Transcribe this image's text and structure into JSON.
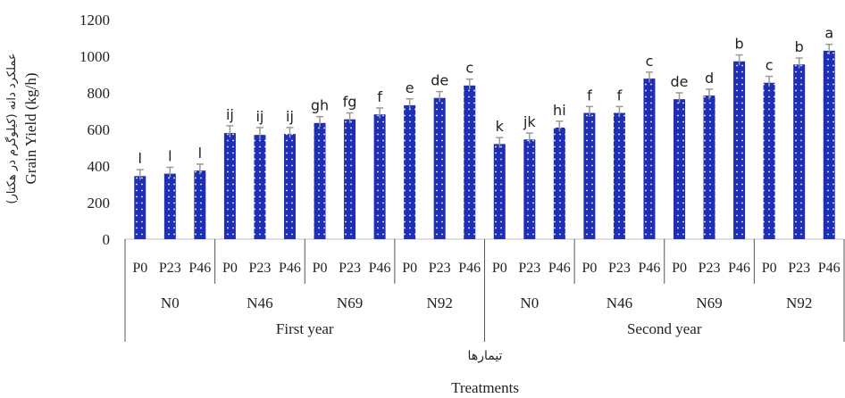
{
  "chart_data": {
    "type": "bar",
    "ylabel": "Grain Yield (kg/h)",
    "ylabel_fa": "عملکرد دانه (کیلوگرم در هکتار)",
    "xlabel": "Treatments",
    "xlabel_fa": "تیمارها",
    "ylim": [
      0,
      1200
    ],
    "yticks": [
      "0",
      "200",
      "400",
      "600",
      "800",
      "1000",
      "1200"
    ],
    "bar_color": "#1f2fb5",
    "errorbar_color": "#999999",
    "years": [
      {
        "label": "First year",
        "groups": [
          {
            "label": "N0",
            "bars": [
              {
                "label": "P0",
                "value": 345,
                "error": 35,
                "letter": "l"
              },
              {
                "label": "P23",
                "value": 358,
                "error": 35,
                "letter": "l"
              },
              {
                "label": "P46",
                "value": 375,
                "error": 35,
                "letter": "l"
              }
            ]
          },
          {
            "label": "N46",
            "bars": [
              {
                "label": "P0",
                "value": 580,
                "error": 40,
                "letter": "ij"
              },
              {
                "label": "P23",
                "value": 570,
                "error": 40,
                "letter": "ij"
              },
              {
                "label": "P46",
                "value": 575,
                "error": 35,
                "letter": "ij"
              }
            ]
          },
          {
            "label": "N69",
            "bars": [
              {
                "label": "P0",
                "value": 635,
                "error": 35,
                "letter": "gh"
              },
              {
                "label": "P23",
                "value": 655,
                "error": 35,
                "letter": "fg"
              },
              {
                "label": "P46",
                "value": 682,
                "error": 35,
                "letter": "f"
              }
            ]
          },
          {
            "label": "N92",
            "bars": [
              {
                "label": "P0",
                "value": 732,
                "error": 35,
                "letter": "e"
              },
              {
                "label": "P23",
                "value": 772,
                "error": 35,
                "letter": "de"
              },
              {
                "label": "P46",
                "value": 840,
                "error": 35,
                "letter": "c"
              }
            ]
          }
        ]
      },
      {
        "label": "Second year",
        "groups": [
          {
            "label": "N0",
            "bars": [
              {
                "label": "P0",
                "value": 520,
                "error": 35,
                "letter": "k"
              },
              {
                "label": "P23",
                "value": 545,
                "error": 35,
                "letter": "jk"
              },
              {
                "label": "P46",
                "value": 610,
                "error": 35,
                "letter": "hi"
              }
            ]
          },
          {
            "label": "N46",
            "bars": [
              {
                "label": "P0",
                "value": 690,
                "error": 35,
                "letter": "f"
              },
              {
                "label": "P23",
                "value": 690,
                "error": 35,
                "letter": "f"
              },
              {
                "label": "P46",
                "value": 878,
                "error": 35,
                "letter": "c"
              }
            ]
          },
          {
            "label": "N69",
            "bars": [
              {
                "label": "P0",
                "value": 765,
                "error": 35,
                "letter": "de"
              },
              {
                "label": "P23",
                "value": 785,
                "error": 35,
                "letter": "d"
              },
              {
                "label": "P46",
                "value": 972,
                "error": 35,
                "letter": "b"
              }
            ]
          },
          {
            "label": "N92",
            "bars": [
              {
                "label": "P0",
                "value": 855,
                "error": 35,
                "letter": "c"
              },
              {
                "label": "P23",
                "value": 955,
                "error": 35,
                "letter": "b"
              },
              {
                "label": "P46",
                "value": 1030,
                "error": 35,
                "letter": "a"
              }
            ]
          }
        ]
      }
    ]
  }
}
